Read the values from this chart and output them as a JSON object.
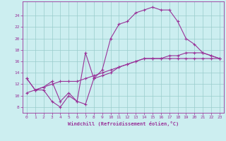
{
  "xlabel": "Windchill (Refroidissement éolien,°C)",
  "bg_color": "#cceef0",
  "line_color": "#993399",
  "grid_color": "#99cccc",
  "axis_color": "#993399",
  "text_color": "#993399",
  "xlim": [
    -0.5,
    23.5
  ],
  "ylim": [
    7.0,
    26.5
  ],
  "xticks": [
    0,
    1,
    2,
    3,
    4,
    5,
    6,
    7,
    8,
    9,
    10,
    11,
    12,
    13,
    14,
    15,
    16,
    17,
    18,
    19,
    20,
    21,
    22,
    23
  ],
  "yticks": [
    8,
    10,
    12,
    14,
    16,
    18,
    20,
    22,
    24
  ],
  "line1_x": [
    0,
    1,
    2,
    3,
    4,
    5,
    6,
    7,
    8,
    9,
    10,
    11,
    12,
    13,
    14,
    15,
    16,
    17,
    18,
    19,
    20,
    21,
    22,
    23
  ],
  "line1_y": [
    13.0,
    11.0,
    11.0,
    9.0,
    8.0,
    10.0,
    9.0,
    8.5,
    13.0,
    13.5,
    14.0,
    15.0,
    15.5,
    16.0,
    16.5,
    16.5,
    16.5,
    16.5,
    16.5,
    16.5,
    16.5,
    16.5,
    16.5,
    16.5
  ],
  "line2_x": [
    0,
    1,
    2,
    3,
    4,
    5,
    6,
    7,
    8,
    9,
    10,
    11,
    12,
    13,
    14,
    15,
    16,
    17,
    18,
    19,
    20,
    21,
    22,
    23
  ],
  "line2_y": [
    10.5,
    11.0,
    11.5,
    12.0,
    12.5,
    12.5,
    12.5,
    13.0,
    13.5,
    14.0,
    14.5,
    15.0,
    15.5,
    16.0,
    16.5,
    16.5,
    16.5,
    17.0,
    17.0,
    17.5,
    17.5,
    17.5,
    17.0,
    16.5
  ],
  "line3_x": [
    0,
    1,
    2,
    3,
    4,
    5,
    6,
    7,
    8,
    9,
    10,
    11,
    12,
    13,
    14,
    15,
    16,
    17,
    18,
    19,
    20,
    21,
    22,
    23
  ],
  "line3_y": [
    13.0,
    11.0,
    11.5,
    12.5,
    9.0,
    10.5,
    9.0,
    17.5,
    13.0,
    14.5,
    20.0,
    22.5,
    23.0,
    24.5,
    25.0,
    25.5,
    25.0,
    25.0,
    23.0,
    20.0,
    19.0,
    17.5,
    17.0,
    16.5
  ],
  "figsize": [
    3.2,
    2.0
  ],
  "dpi": 100
}
